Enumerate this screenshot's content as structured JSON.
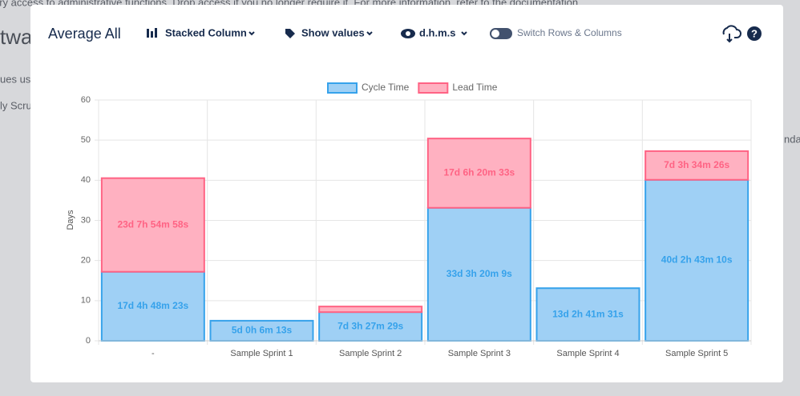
{
  "background": {
    "notice": "ary access to administrative functions. Drop access if you no longer require it. For more information, refer to the documentation.",
    "fragments": [
      "twa",
      "ues usin",
      "ly Scrum",
      "nda"
    ]
  },
  "header": {
    "title": "Average All",
    "chart_type": "Stacked Column",
    "show_values": "Show values",
    "format": "d.h.m.s",
    "switch": "Switch Rows & Columns"
  },
  "chart_data": {
    "type": "stacked-bar",
    "y_label": "Days",
    "categories": [
      "-",
      "Sample Sprint 1",
      "Sample Sprint 2",
      "Sample Sprint 3",
      "Sample Sprint 4",
      "Sample Sprint 5"
    ],
    "series": [
      {
        "name": "Cycle Time",
        "color": "#36a2eb",
        "fill": "#9fd0f5",
        "values": [
          17.2003,
          5.0043,
          7.1441,
          33.139,
          13.1122,
          40.1133
        ],
        "value_labels": [
          "17d 4h 48m 23s",
          "5d 0h 6m 13s",
          "7d 3h 27m 29s",
          "33d 3h 20m 9s",
          "13d 2h 41m 31s",
          "40d 2h 43m 10s"
        ]
      },
      {
        "name": "Lead Time",
        "color": "#ff6384",
        "fill": "#ffb1c1",
        "values": [
          23.3298,
          null,
          1.4,
          17.2643,
          null,
          7.1489
        ],
        "value_labels": [
          "23d 7h 54m 58s",
          null,
          null,
          "17d 6h 20m 33s",
          null,
          "7d 3h 34m 26s"
        ]
      }
    ],
    "ylim": [
      0,
      60
    ],
    "yticks": [
      0,
      10,
      20,
      30,
      40,
      50,
      60
    ],
    "grid": true
  }
}
